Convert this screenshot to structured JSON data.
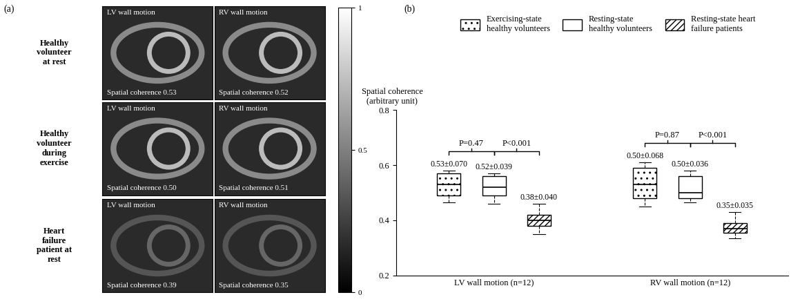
{
  "panel_a": {
    "label": "(a)",
    "rows": [
      {
        "label": "Healthy volunteer at rest",
        "images": [
          {
            "title": "LV wall motion",
            "caption": "Spatial coherence 0.53"
          },
          {
            "title": "RV wall motion",
            "caption": "Spatial coherence 0.52"
          }
        ]
      },
      {
        "label": "Healthy volunteer during exercise",
        "images": [
          {
            "title": "LV wall motion",
            "caption": "Spatial coherence 0.50"
          },
          {
            "title": "RV wall motion",
            "caption": "Spatial coherence 0.51"
          }
        ]
      },
      {
        "label": "Heart failure patient at rest",
        "images": [
          {
            "title": "LV wall motion",
            "caption": "Spatial coherence 0.39"
          },
          {
            "title": "RV wall motion",
            "caption": "Spatial coherence 0.35"
          }
        ]
      }
    ],
    "colorbar": {
      "range": [
        0,
        1
      ],
      "ticks": [
        0,
        0.5,
        1
      ]
    }
  },
  "chart_data": {
    "type": "box",
    "panel_label": "(b)",
    "y_label": "Spatial coherence\n(arbitrary unit)",
    "categories": [
      "LV wall motion (n=12)",
      "RV wall motion (n=12)"
    ],
    "ylim": [
      0.2,
      0.8
    ],
    "yticks": [
      0.2,
      0.4,
      0.6,
      0.8
    ],
    "legend": "upper center",
    "series": [
      {
        "name": "Exercising-state healthy volunteers",
        "color": "#ffffff",
        "whislo": [
          0.465,
          0.45
        ],
        "q1": [
          0.49,
          0.48
        ],
        "med": [
          0.53,
          0.53
        ],
        "q3": [
          0.57,
          0.59
        ],
        "whishi": [
          0.58,
          0.61
        ],
        "mean_sd_labels": [
          "0.53±0.070",
          "0.50±0.068"
        ]
      },
      {
        "name": "Resting-state healthy volunteers",
        "color": "#ffffff",
        "whislo": [
          0.46,
          0.465
        ],
        "q1": [
          0.49,
          0.48
        ],
        "med": [
          0.52,
          0.5
        ],
        "q3": [
          0.56,
          0.56
        ],
        "whishi": [
          0.57,
          0.58
        ],
        "mean_sd_labels": [
          "0.52±0.039",
          "0.50±0.036"
        ]
      },
      {
        "name": "Resting-state heart failure patients",
        "color": "#ffffff",
        "whislo": [
          0.35,
          0.335
        ],
        "q1": [
          0.38,
          0.355
        ],
        "med": [
          0.4,
          0.37
        ],
        "q3": [
          0.42,
          0.39
        ],
        "whishi": [
          0.46,
          0.43
        ],
        "mean_sd_labels": [
          "0.38±0.040",
          "0.35±0.035"
        ]
      }
    ],
    "annotations": [
      {
        "text": "P=0.47",
        "category": "LV wall motion (n=12)",
        "between": [
          "Exercising-state healthy volunteers",
          "Resting-state healthy volunteers"
        ]
      },
      {
        "text": "P<0.001",
        "category": "LV wall motion (n=12)",
        "between": [
          "Resting-state healthy volunteers",
          "Resting-state heart failure patients"
        ]
      },
      {
        "text": "P=0.87",
        "category": "RV wall motion (n=12)",
        "between": [
          "Exercising-state healthy volunteers",
          "Resting-state healthy volunteers"
        ]
      },
      {
        "text": "P<0.001",
        "category": "RV wall motion (n=12)",
        "between": [
          "Resting-state healthy volunteers",
          "Resting-state heart failure patients"
        ]
      }
    ]
  }
}
